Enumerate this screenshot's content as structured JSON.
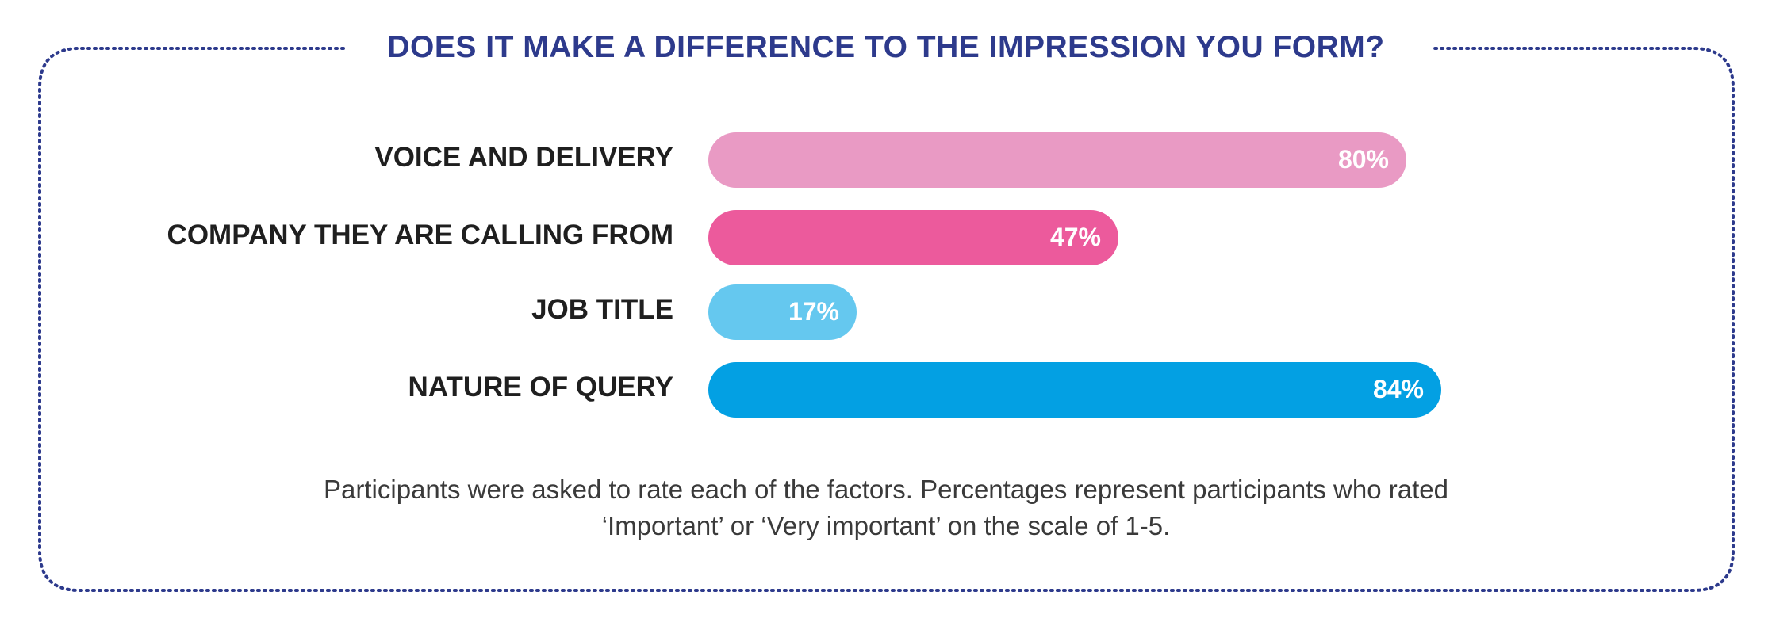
{
  "colors": {
    "frame": "#2d3a8c",
    "title": "#2d3a8c",
    "text": "#1f1f1f"
  },
  "chart_data": {
    "type": "bar",
    "orientation": "horizontal",
    "title": "DOES IT MAKE A DIFFERENCE TO THE IMPRESSION YOU FORM?",
    "categories": [
      "VOICE AND DELIVERY",
      "COMPANY THEY ARE CALLING FROM",
      "JOB TITLE",
      "NATURE OF QUERY"
    ],
    "values": [
      80,
      47,
      17,
      84
    ],
    "value_labels": [
      "80%",
      "47%",
      "17%",
      "84%"
    ],
    "bar_colors": [
      "#e99ac4",
      "#ec5a9c",
      "#65c8ef",
      "#03a0e3"
    ],
    "xlim": [
      0,
      100
    ],
    "grid": false,
    "legend": "none"
  },
  "footnote": {
    "line1": "Participants were asked to rate each of the factors. Percentages represent participants who rated",
    "line2": "‘Important’ or ‘Very important’ on the scale of 1-5."
  }
}
